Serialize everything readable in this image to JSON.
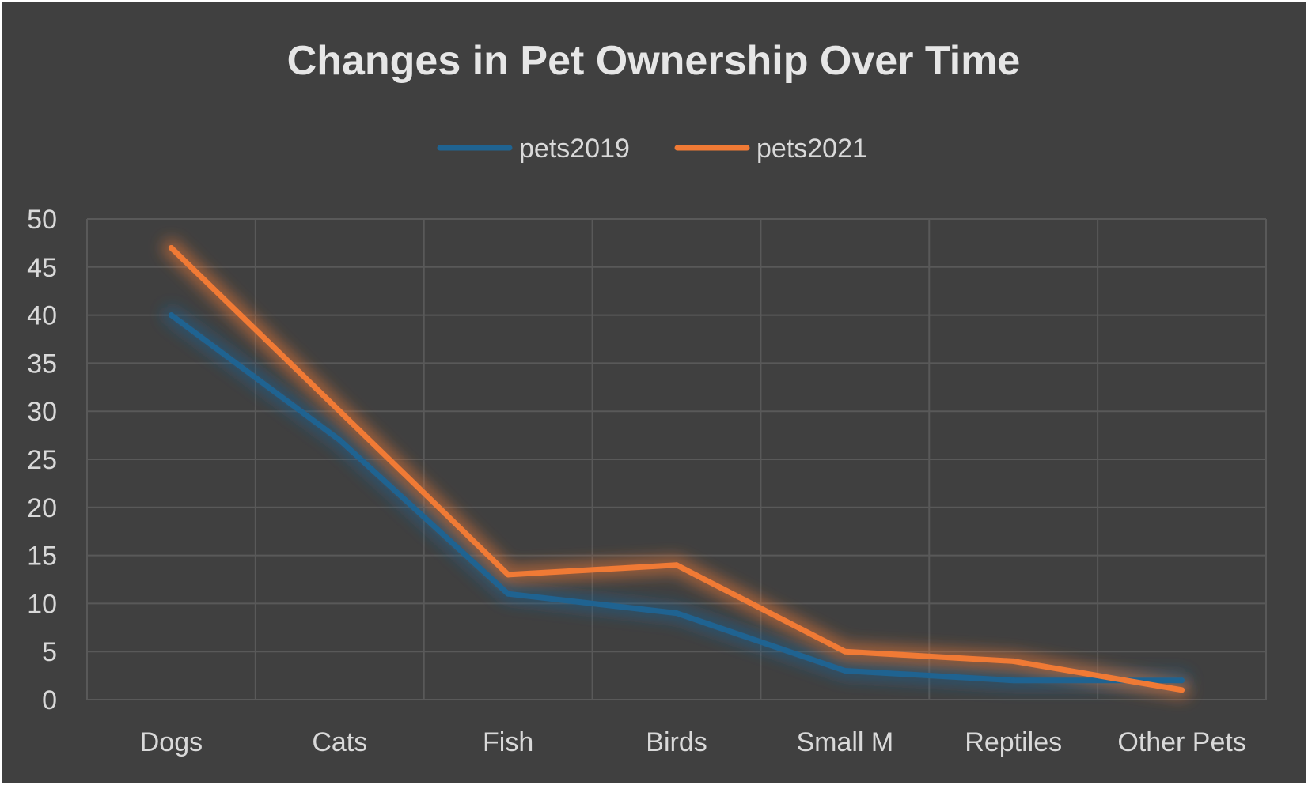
{
  "chart_data": {
    "type": "line",
    "title": "Changes in Pet Ownership Over Time",
    "categories": [
      "Dogs",
      "Cats",
      "Fish",
      "Birds",
      "Small M",
      "Reptiles",
      "Other Pets"
    ],
    "series": [
      {
        "name": "pets2019",
        "color": "#1f6391",
        "values": [
          40,
          27,
          11,
          9,
          3,
          2,
          2
        ]
      },
      {
        "name": "pets2021",
        "color": "#f07a35",
        "values": [
          47,
          30,
          13,
          14,
          5,
          4,
          1
        ]
      }
    ],
    "ylim": [
      0,
      50
    ],
    "yticks": [
      "0",
      "5",
      "10",
      "15",
      "20",
      "25",
      "30",
      "35",
      "40",
      "45",
      "50"
    ],
    "grid": true,
    "legend_position": "top",
    "xlabel": "",
    "ylabel": ""
  },
  "colors": {
    "background": "#404040",
    "grid": "#595959",
    "text": "#d9d9d9",
    "title": "#e6e6e6"
  }
}
